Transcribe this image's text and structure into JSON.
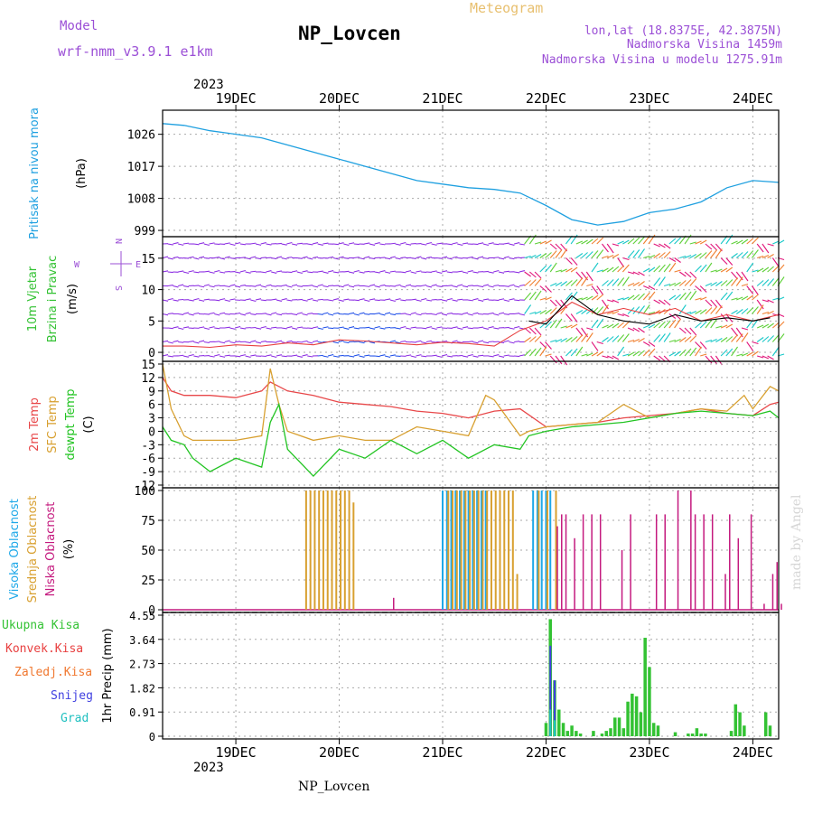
{
  "header": {
    "model_label": "Model",
    "model_name": "wrf-nmm_v3.9.1 e1km",
    "station": "NP_Lovcen",
    "meteogram": "Meteogram",
    "lonlat": "lon,lat (18.8375E, 42.3875N)",
    "altitude": "Nadmorska Visina 1459m",
    "model_altitude": "Nadmorska Visina u modelu 1275.91m",
    "watermark": "made by Angel",
    "footer_station": "NP_Lovcen"
  },
  "colors": {
    "pressure": "#1fa0e0",
    "temp2m": "#e8484a",
    "sfc": "#d8a030",
    "dew": "#22c422",
    "high_cloud": "#1ea8e8",
    "mid_cloud": "#d8a030",
    "low_cloud": "#c4197e",
    "total_precip": "#33c233",
    "convective": "#e84040",
    "frozen": "#f07830",
    "snow": "#4040e0",
    "hail": "#20c0c0",
    "wind_purple": "#8b2be2",
    "wind_blue": "#1f4fe8",
    "wind_cyan": "#18c8c8",
    "wind_green": "#5fd03a",
    "wind_orange": "#f08030",
    "wind_magenta": "#e0157a"
  },
  "time_axis": {
    "year": "2023",
    "days": [
      "19DEC",
      "20DEC",
      "21DEC",
      "22DEC",
      "23DEC",
      "24DEC"
    ],
    "start_hour": -5,
    "end_hour": 138
  },
  "chart_data": [
    {
      "type": "line",
      "panel": "pressure",
      "ylabel_lines": [
        "Pritisak na nivou mora",
        "(hPa)"
      ],
      "yticks": [
        999,
        1008,
        1017,
        1026
      ],
      "ylim": [
        998,
        1032
      ],
      "grid": true,
      "series": [
        {
          "x": [
            -5,
            0,
            6,
            12,
            18,
            24,
            30,
            36,
            42,
            48,
            54,
            60,
            66,
            72,
            78,
            84,
            90,
            96,
            102,
            108,
            114,
            120,
            126,
            132,
            138
          ],
          "y": [
            1029,
            1028.5,
            1027,
            1026,
            1025,
            1023,
            1021,
            1019,
            1017,
            1015,
            1013,
            1012,
            1011,
            1010.5,
            1009.5,
            1006,
            1002,
            1000.5,
            1001.5,
            1004,
            1005,
            1007,
            1011,
            1013,
            1012.5
          ]
        }
      ]
    },
    {
      "type": "line",
      "panel": "wind",
      "ylabel_lines": [
        "10m Vjetar",
        "Brzina i Pravac",
        "(m/s)"
      ],
      "compass": [
        "N",
        "W",
        "E",
        "S"
      ],
      "yticks": [
        0,
        5,
        10,
        15
      ],
      "ylim": [
        -1,
        18
      ],
      "grid": true,
      "series": [
        {
          "name": "",
          "x": [
            -5,
            0,
            6,
            12,
            18,
            24,
            30,
            36,
            42,
            48,
            54,
            60,
            66,
            72,
            78,
            84,
            90,
            96,
            102,
            108,
            114,
            120,
            126,
            132,
            138
          ],
          "y": [
            1,
            1,
            0.8,
            1.2,
            1,
            1.5,
            1.2,
            2,
            1.8,
            1.5,
            1.2,
            1.6,
            1.4,
            1,
            3.5,
            5,
            8,
            6,
            7,
            6,
            7,
            5,
            6,
            5,
            6
          ]
        },
        {
          "name": "",
          "x": [
            80,
            84,
            90,
            96,
            102,
            108,
            114,
            120,
            126,
            132,
            136
          ],
          "y": [
            5,
            4.5,
            9,
            6,
            5,
            4.5,
            6,
            5,
            5.5,
            5,
            5.5
          ]
        }
      ]
    },
    {
      "type": "line",
      "panel": "temperature",
      "ylabel_lines": [
        "2m Temp",
        "SFC Temp",
        "dewpt Temp",
        "(C)"
      ],
      "yticks": [
        -12,
        -9,
        -6,
        -3,
        0,
        3,
        6,
        9,
        12,
        15
      ],
      "ylim": [
        -12,
        15
      ],
      "grid": true,
      "series": [
        {
          "name": "2m Temp",
          "x": [
            -5,
            -3,
            0,
            6,
            12,
            18,
            20,
            24,
            30,
            36,
            42,
            48,
            54,
            60,
            66,
            72,
            78,
            84,
            90,
            96,
            102,
            108,
            114,
            120,
            126,
            132,
            136,
            138
          ],
          "y": [
            12,
            9,
            8,
            8,
            7.5,
            9,
            11,
            9,
            8,
            6.5,
            6,
            5.5,
            4.5,
            4,
            3,
            4.5,
            5,
            1,
            1.5,
            2,
            3,
            3.5,
            4,
            5,
            4,
            3.5,
            6,
            6.5
          ]
        },
        {
          "name": "SFC Temp",
          "x": [
            -5,
            -3,
            0,
            2,
            6,
            12,
            18,
            20,
            22,
            24,
            30,
            36,
            42,
            48,
            54,
            60,
            66,
            70,
            72,
            78,
            80,
            84,
            90,
            96,
            102,
            108,
            114,
            120,
            126,
            130,
            132,
            136,
            138
          ],
          "y": [
            15,
            5,
            -1,
            -2,
            -2,
            -2,
            -1,
            14,
            6,
            0,
            -2,
            -1,
            -2,
            -2,
            1,
            0,
            -1,
            8,
            7,
            -1,
            0,
            1,
            1.5,
            2,
            6,
            3,
            4,
            5,
            4.5,
            8,
            5,
            10,
            9
          ]
        },
        {
          "name": "dewpt Temp",
          "x": [
            -5,
            -3,
            0,
            2,
            6,
            12,
            18,
            20,
            22,
            24,
            30,
            36,
            42,
            48,
            54,
            60,
            66,
            72,
            78,
            80,
            84,
            90,
            96,
            102,
            108,
            114,
            120,
            126,
            132,
            136,
            138
          ],
          "y": [
            1,
            -2,
            -3,
            -6,
            -9,
            -6,
            -8,
            2,
            6,
            -4,
            -10,
            -4,
            -6,
            -2,
            -5,
            -2,
            -6,
            -3,
            -4,
            -1,
            0,
            1,
            1.5,
            2,
            3,
            4,
            4.5,
            4,
            3.5,
            4.5,
            3
          ]
        }
      ]
    },
    {
      "type": "bar",
      "panel": "clouds",
      "ylabel_lines": [
        "Visoka Oblacnost",
        "Srednja Oblacnost",
        "Niska Oblacnost",
        "(%)"
      ],
      "yticks": [
        0,
        25,
        50,
        75,
        100
      ],
      "ylim": [
        0,
        100
      ],
      "grid": true,
      "series": [
        {
          "name": "Visoka Oblacnost",
          "x": [
            60,
            61,
            62,
            63,
            64,
            65,
            66,
            67,
            68,
            69,
            70,
            81,
            82,
            83,
            84,
            85
          ],
          "values": [
            100,
            100,
            100,
            100,
            100,
            100,
            100,
            100,
            100,
            100,
            100,
            100,
            100,
            100,
            100,
            100
          ]
        },
        {
          "name": "Srednja Oblacnost",
          "x": [
            28,
            29,
            30,
            31,
            32,
            33,
            34,
            35,
            36,
            37,
            38,
            39,
            61,
            62,
            63,
            64,
            65,
            66,
            67,
            68,
            69,
            70,
            71,
            72,
            73,
            74,
            75,
            76,
            77,
            82,
            84,
            86
          ],
          "values": [
            100,
            100,
            100,
            100,
            100,
            100,
            100,
            100,
            100,
            100,
            100,
            90,
            100,
            100,
            100,
            100,
            100,
            100,
            100,
            100,
            100,
            100,
            100,
            100,
            100,
            100,
            100,
            100,
            30,
            100,
            100,
            100
          ]
        },
        {
          "name": "Niska Oblacnost",
          "x": [
            48,
            86,
            87,
            88,
            90,
            92,
            94,
            96,
            101,
            103,
            109,
            111,
            114,
            117,
            118,
            120,
            122,
            125,
            126,
            128,
            131,
            134,
            136,
            137,
            138
          ],
          "values": [
            10,
            70,
            80,
            80,
            60,
            80,
            80,
            80,
            50,
            80,
            80,
            80,
            100,
            100,
            80,
            80,
            80,
            30,
            80,
            60,
            80,
            5,
            30,
            40,
            5
          ]
        }
      ]
    },
    {
      "type": "bar",
      "panel": "precip",
      "legend": [
        "Ukupna Kisa",
        "Konvek.Kisa",
        "Zaledj.Kisa",
        "Snijeg",
        "Grad"
      ],
      "ylabel_lines": [
        "1hr Precip (mm)"
      ],
      "yticks": [
        "0",
        "0.91",
        "1.82",
        "2.73",
        "3.64",
        "4.55"
      ],
      "ylim": [
        0,
        4.55
      ],
      "grid": true,
      "series": [
        {
          "name": "Ukupna Kisa",
          "x": [
            84,
            85,
            86,
            87,
            88,
            89,
            90,
            91,
            92,
            95,
            97,
            98,
            99,
            100,
            101,
            102,
            103,
            104,
            105,
            106,
            107,
            108,
            109,
            110,
            114,
            117,
            118,
            119,
            120,
            121,
            127,
            128,
            129,
            130,
            135,
            136
          ],
          "values": [
            0.5,
            4.4,
            2.1,
            1.0,
            0.5,
            0.2,
            0.4,
            0.2,
            0.1,
            0.2,
            0.1,
            0.2,
            0.3,
            0.7,
            0.7,
            0.3,
            1.3,
            1.6,
            1.5,
            0.9,
            3.7,
            2.6,
            0.5,
            0.4,
            0.15,
            0.1,
            0.1,
            0.3,
            0.1,
            0.1,
            0.2,
            1.2,
            0.9,
            0.4,
            0.9,
            0.4
          ]
        },
        {
          "name": "Snijeg",
          "x": [
            85,
            86
          ],
          "values": [
            3.4,
            2.1
          ]
        },
        {
          "name": "Grad",
          "x": [
            85,
            86
          ],
          "values": [
            1.0,
            0.6
          ]
        }
      ]
    }
  ]
}
